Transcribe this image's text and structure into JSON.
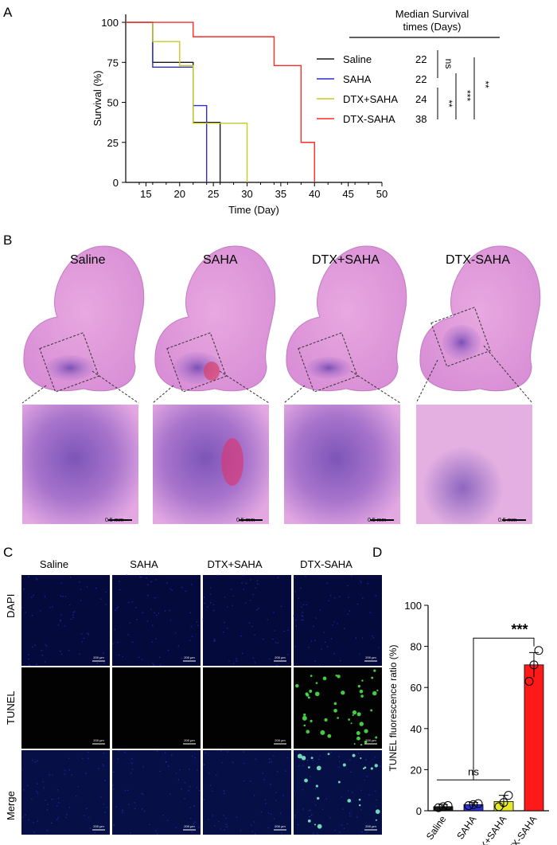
{
  "panels": {
    "A": "A",
    "B": "B",
    "C": "C",
    "D": "D"
  },
  "chart_data": [
    {
      "type": "line",
      "panel": "A",
      "step": true,
      "xlabel": "Time (Day)",
      "ylabel": "Survival (%)",
      "xlim": [
        12,
        50
      ],
      "ylim": [
        0,
        105
      ],
      "xticks": [
        15,
        20,
        25,
        30,
        35,
        40,
        45,
        50
      ],
      "yticks": [
        0,
        25,
        50,
        75,
        100
      ],
      "legend_position": "right",
      "median_header": "Median Survival times (Days)",
      "median_header_lines": [
        "Median Survival",
        "times (Days)"
      ],
      "series": [
        {
          "name": "Saline",
          "color": "#1a1a1a",
          "median": "22",
          "x": [
            12,
            16,
            22,
            26
          ],
          "y": [
            100,
            75,
            37.5,
            0
          ]
        },
        {
          "name": "SAHA",
          "color": "#2b2fd6",
          "median": "22",
          "x": [
            12,
            16,
            22,
            24
          ],
          "y": [
            100,
            72,
            48,
            0
          ]
        },
        {
          "name": "DTX+SAHA",
          "color": "#c9c923",
          "median": "24",
          "x": [
            12,
            16,
            20,
            22,
            24,
            30
          ],
          "y": [
            100,
            88,
            73,
            37,
            37,
            0
          ]
        },
        {
          "name": "DTX-SAHA",
          "color": "#ff2a2a",
          "median": "38",
          "x": [
            12,
            22,
            34,
            38,
            40
          ],
          "y": [
            100,
            91,
            73,
            25,
            0
          ]
        }
      ],
      "significance": [
        "ns",
        "**",
        "***",
        "**"
      ]
    },
    {
      "type": "bar",
      "panel": "D",
      "categories": [
        "Saline",
        "SAHA",
        "DTX+SAHA",
        "DTX-SAHA"
      ],
      "values": [
        2,
        3,
        4.5,
        71
      ],
      "errors": [
        1,
        1,
        3,
        6
      ],
      "points": [
        [
          1.5,
          2,
          2.5
        ],
        [
          2.5,
          3,
          3.5
        ],
        [
          2,
          4,
          7.5
        ],
        [
          63,
          71,
          78
        ]
      ],
      "colors": [
        "#1a1a1a",
        "#2b2fd6",
        "#e8e82a",
        "#ff1a1a"
      ],
      "ylabel": "TUNEL fluorescence ratio (%)",
      "ylim": [
        0,
        100
      ],
      "yticks": [
        0,
        20,
        40,
        60,
        80,
        100
      ],
      "significance": [
        "ns",
        "***"
      ]
    }
  ],
  "histology": {
    "groups": [
      "Saline",
      "SAHA",
      "DTX+SAHA",
      "DTX-SAHA"
    ],
    "scale": "0.5 mm"
  },
  "fluorescence": {
    "groups": [
      "Saline",
      "SAHA",
      "DTX+SAHA",
      "DTX-SAHA"
    ],
    "rows": [
      "DAPI",
      "TUNEL",
      "Merge"
    ],
    "scale": "200 μm"
  }
}
